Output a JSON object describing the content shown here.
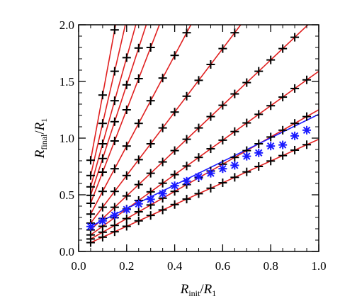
{
  "chart_data": {
    "type": "scatter",
    "xlabel": {
      "main": "R",
      "sub": "init",
      "sep": "/",
      "main2": "R",
      "sub2": "1"
    },
    "ylabel": {
      "main": "R",
      "sub": "final",
      "sep": "/",
      "main2": "R",
      "sub2": "1"
    },
    "xlim": [
      0.0,
      1.0
    ],
    "ylim": [
      0.0,
      2.0
    ],
    "x_ticks": [
      "0.0",
      "0.2",
      "0.4",
      "0.6",
      "0.8",
      "1.0"
    ],
    "y_ticks": [
      "0.0",
      "0.5",
      "1.0",
      "1.5",
      "2.0"
    ],
    "grid": false,
    "lines_color": "#e02020",
    "plus_color": "#000000",
    "star_color": "#1a1aff",
    "fit_lines": [
      {
        "intercept": 0.03,
        "slope": 0.96
      },
      {
        "intercept": 0.05,
        "slope": 1.2
      },
      {
        "intercept": 0.07,
        "slope": 1.52
      },
      {
        "intercept": 0.09,
        "slope": 2.0
      },
      {
        "intercept": 0.11,
        "slope": 2.8
      },
      {
        "intercept": 0.13,
        "slope": 4.0
      },
      {
        "intercept": 0.15,
        "slope": 5.5
      },
      {
        "intercept": 0.17,
        "slope": 6.5
      },
      {
        "intercept": 0.19,
        "slope": 7.6
      },
      {
        "intercept": 0.21,
        "slope": 9.2
      },
      {
        "intercept": 0.23,
        "slope": 11.5
      }
    ],
    "plus_x": [
      0.05,
      0.1,
      0.15,
      0.2,
      0.25,
      0.3,
      0.35,
      0.4,
      0.45,
      0.5,
      0.55,
      0.6,
      0.65,
      0.7,
      0.75,
      0.8,
      0.85,
      0.9,
      0.95
    ],
    "star_points": [
      [
        0.05,
        0.22
      ],
      [
        0.1,
        0.27
      ],
      [
        0.15,
        0.32
      ],
      [
        0.2,
        0.37
      ],
      [
        0.25,
        0.42
      ],
      [
        0.3,
        0.46
      ],
      [
        0.35,
        0.51
      ],
      [
        0.4,
        0.58
      ],
      [
        0.45,
        0.62
      ],
      [
        0.5,
        0.66
      ],
      [
        0.55,
        0.69
      ],
      [
        0.6,
        0.73
      ],
      [
        0.65,
        0.76
      ],
      [
        0.7,
        0.84
      ],
      [
        0.75,
        0.87
      ],
      [
        0.8,
        0.93
      ],
      [
        0.85,
        0.94
      ],
      [
        0.9,
        1.02
      ],
      [
        0.95,
        1.07
      ]
    ],
    "star_fit": {
      "intercept": 0.17,
      "slope": 1.04
    }
  }
}
